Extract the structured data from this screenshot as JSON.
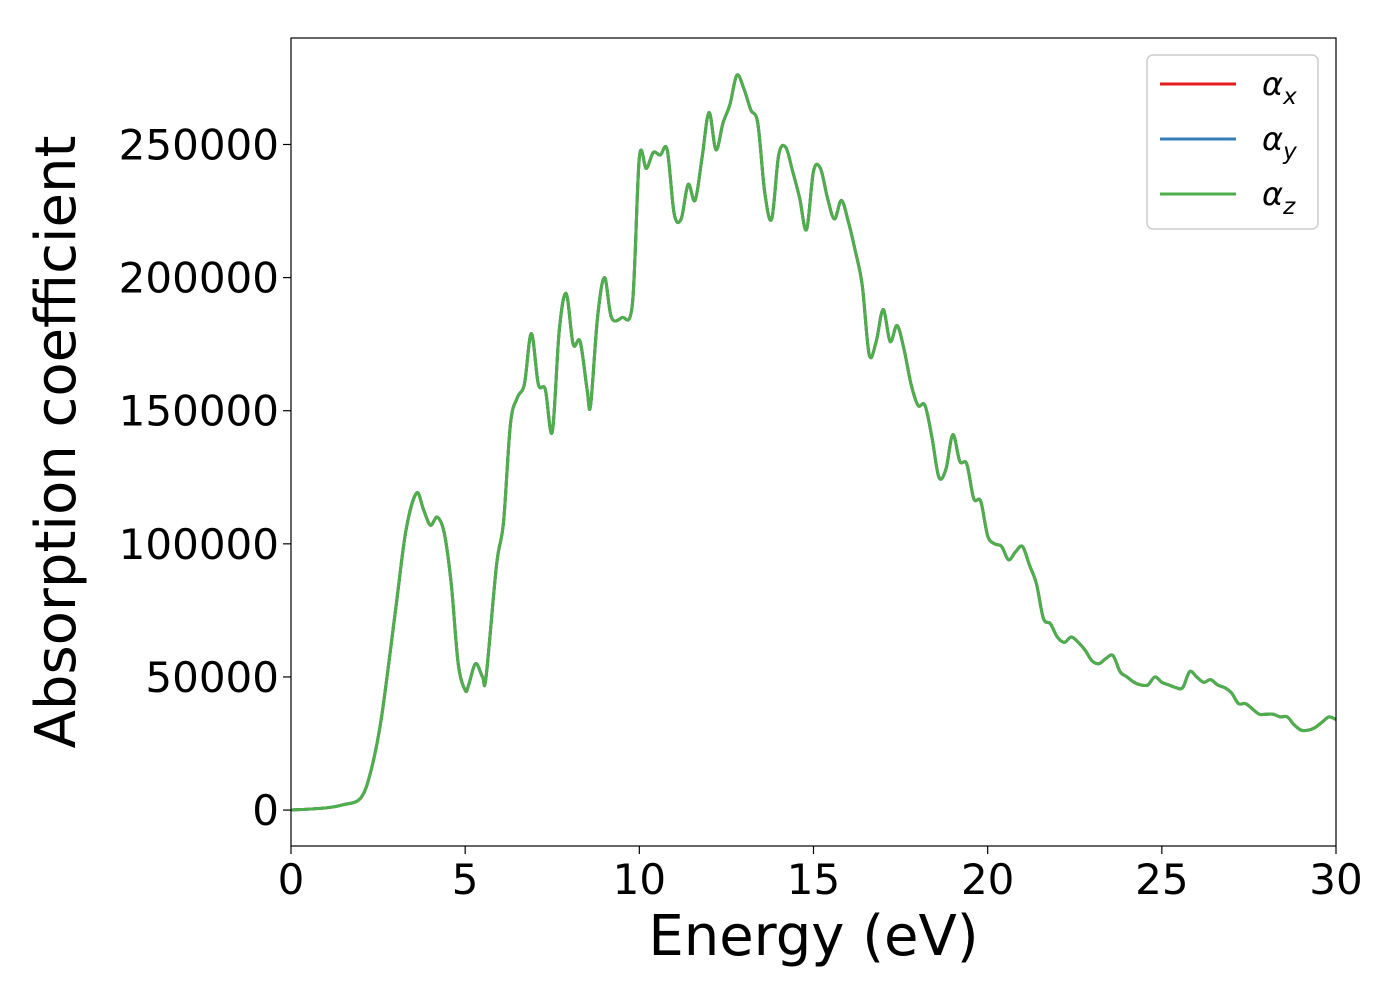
{
  "chart_data": {
    "type": "line",
    "title": "",
    "xlabel": "Energy (eV)",
    "ylabel": "Absorption coefficient",
    "xlim": [
      0,
      30
    ],
    "ylim": [
      -13500,
      290000
    ],
    "xticks": [
      0,
      5,
      10,
      15,
      20,
      25,
      30
    ],
    "yticks": [
      0,
      50000,
      100000,
      150000,
      200000,
      250000
    ],
    "xtick_labels": [
      "0",
      "5",
      "10",
      "15",
      "20",
      "25",
      "30"
    ],
    "ytick_labels": [
      "0",
      "50000",
      "100000",
      "150000",
      "200000",
      "250000"
    ],
    "grid": false,
    "legend_position": "top-right",
    "x": [
      0,
      1,
      1.5,
      2,
      2.3,
      2.6,
      3,
      3.3,
      3.6,
      3.8,
      4,
      4.2,
      4.4,
      4.6,
      4.8,
      5,
      5.1,
      5.3,
      5.5,
      5.6,
      5.9,
      6.1,
      6.3,
      6.5,
      6.7,
      6.9,
      7.1,
      7.3,
      7.5,
      7.7,
      7.9,
      8.1,
      8.3,
      8.5,
      8.6,
      8.8,
      9,
      9.2,
      9.5,
      9.8,
      10,
      10.2,
      10.4,
      10.6,
      10.8,
      11,
      11.2,
      11.4,
      11.6,
      11.8,
      12,
      12.2,
      12.4,
      12.6,
      12.8,
      13,
      13.2,
      13.4,
      13.6,
      13.8,
      14,
      14.2,
      14.4,
      14.6,
      14.8,
      15,
      15.2,
      15.4,
      15.6,
      15.8,
      16,
      16.2,
      16.4,
      16.6,
      16.8,
      17,
      17.2,
      17.4,
      17.6,
      17.8,
      18,
      18.2,
      18.4,
      18.6,
      18.8,
      19,
      19.2,
      19.4,
      19.6,
      19.8,
      20,
      20.2,
      20.4,
      20.6,
      20.8,
      21,
      21.2,
      21.4,
      21.6,
      21.8,
      22,
      22.2,
      22.4,
      22.6,
      22.8,
      23,
      23.2,
      23.4,
      23.6,
      23.8,
      24,
      24.2,
      24.4,
      24.6,
      24.8,
      25,
      25.2,
      25.4,
      25.6,
      25.8,
      26,
      26.2,
      26.4,
      26.6,
      26.8,
      27,
      27.2,
      27.4,
      27.6,
      27.8,
      28,
      28.2,
      28.4,
      28.6,
      28.8,
      29,
      29.2,
      29.4,
      29.6,
      29.8,
      30
    ],
    "series": [
      {
        "name": "αx",
        "color": "#e41a1c",
        "values": [
          0,
          800,
          2000,
          4500,
          15000,
          35000,
          75000,
          105000,
          119000,
          113000,
          107000,
          110000,
          104000,
          85000,
          55000,
          45000,
          47000,
          55000,
          50000,
          50000,
          92000,
          108000,
          145000,
          155000,
          160000,
          179000,
          160000,
          158000,
          142000,
          180000,
          194000,
          175000,
          176000,
          158000,
          152000,
          185000,
          200000,
          185000,
          185000,
          190000,
          245000,
          241000,
          247000,
          246000,
          248000,
          224000,
          222000,
          235000,
          229000,
          245000,
          262000,
          248000,
          258000,
          265000,
          276000,
          271000,
          263000,
          258000,
          232000,
          222000,
          246000,
          249000,
          240000,
          230000,
          218000,
          240000,
          241000,
          230000,
          222000,
          229000,
          221000,
          210000,
          197000,
          171000,
          176000,
          188000,
          176000,
          182000,
          173000,
          160000,
          152000,
          152000,
          140000,
          125000,
          128000,
          141000,
          131000,
          130000,
          117000,
          116000,
          103000,
          100000,
          99000,
          94000,
          97000,
          99000,
          92000,
          85000,
          72000,
          70000,
          65000,
          63000,
          65000,
          63000,
          60000,
          56000,
          55000,
          57000,
          58000,
          52000,
          50000,
          48000,
          47000,
          47000,
          50000,
          48000,
          47000,
          46000,
          46000,
          52000,
          50000,
          48000,
          49000,
          47000,
          46000,
          44000,
          40000,
          40000,
          38000,
          36000,
          36000,
          36000,
          35000,
          35000,
          32000,
          30000,
          30000,
          31000,
          33000,
          35000,
          34000
        ]
      },
      {
        "name": "αy",
        "color": "#377eb8",
        "values": [
          0,
          800,
          2000,
          4500,
          15000,
          35000,
          75000,
          105000,
          119000,
          113000,
          107000,
          110000,
          104000,
          85000,
          55000,
          45000,
          47000,
          55000,
          50000,
          50000,
          92000,
          108000,
          145000,
          155000,
          160000,
          179000,
          160000,
          158000,
          142000,
          180000,
          194000,
          175000,
          176000,
          158000,
          152000,
          185000,
          200000,
          185000,
          185000,
          190000,
          245000,
          241000,
          247000,
          246000,
          248000,
          224000,
          222000,
          235000,
          229000,
          245000,
          262000,
          248000,
          258000,
          265000,
          276000,
          271000,
          263000,
          258000,
          232000,
          222000,
          246000,
          249000,
          240000,
          230000,
          218000,
          240000,
          241000,
          230000,
          222000,
          229000,
          221000,
          210000,
          197000,
          171000,
          176000,
          188000,
          176000,
          182000,
          173000,
          160000,
          152000,
          152000,
          140000,
          125000,
          128000,
          141000,
          131000,
          130000,
          117000,
          116000,
          103000,
          100000,
          99000,
          94000,
          97000,
          99000,
          92000,
          85000,
          72000,
          70000,
          65000,
          63000,
          65000,
          63000,
          60000,
          56000,
          55000,
          57000,
          58000,
          52000,
          50000,
          48000,
          47000,
          47000,
          50000,
          48000,
          47000,
          46000,
          46000,
          52000,
          50000,
          48000,
          49000,
          47000,
          46000,
          44000,
          40000,
          40000,
          38000,
          36000,
          36000,
          36000,
          35000,
          35000,
          32000,
          30000,
          30000,
          31000,
          33000,
          35000,
          34000
        ]
      },
      {
        "name": "αz",
        "color": "#4daf4a",
        "values": [
          0,
          800,
          2000,
          4500,
          15000,
          35000,
          75000,
          105000,
          119000,
          113000,
          107000,
          110000,
          104000,
          85000,
          55000,
          45000,
          47000,
          55000,
          50000,
          50000,
          92000,
          108000,
          145000,
          155000,
          160000,
          179000,
          160000,
          158000,
          142000,
          180000,
          194000,
          175000,
          176000,
          158000,
          152000,
          185000,
          200000,
          185000,
          185000,
          190000,
          245000,
          241000,
          247000,
          246000,
          248000,
          224000,
          222000,
          235000,
          229000,
          245000,
          262000,
          248000,
          258000,
          265000,
          276000,
          271000,
          263000,
          258000,
          232000,
          222000,
          246000,
          249000,
          240000,
          230000,
          218000,
          240000,
          241000,
          230000,
          222000,
          229000,
          221000,
          210000,
          197000,
          171000,
          176000,
          188000,
          176000,
          182000,
          173000,
          160000,
          152000,
          152000,
          140000,
          125000,
          128000,
          141000,
          131000,
          130000,
          117000,
          116000,
          103000,
          100000,
          99000,
          94000,
          97000,
          99000,
          92000,
          85000,
          72000,
          70000,
          65000,
          63000,
          65000,
          63000,
          60000,
          56000,
          55000,
          57000,
          58000,
          52000,
          50000,
          48000,
          47000,
          47000,
          50000,
          48000,
          47000,
          46000,
          46000,
          52000,
          50000,
          48000,
          49000,
          47000,
          46000,
          44000,
          40000,
          40000,
          38000,
          36000,
          36000,
          36000,
          35000,
          35000,
          32000,
          30000,
          30000,
          31000,
          33000,
          35000,
          34000
        ]
      }
    ],
    "legend": [
      {
        "symbol": "α",
        "subscript": "x",
        "color": "#e41a1c"
      },
      {
        "symbol": "α",
        "subscript": "y",
        "color": "#377eb8"
      },
      {
        "symbol": "α",
        "subscript": "z",
        "color": "#4daf4a"
      }
    ]
  }
}
